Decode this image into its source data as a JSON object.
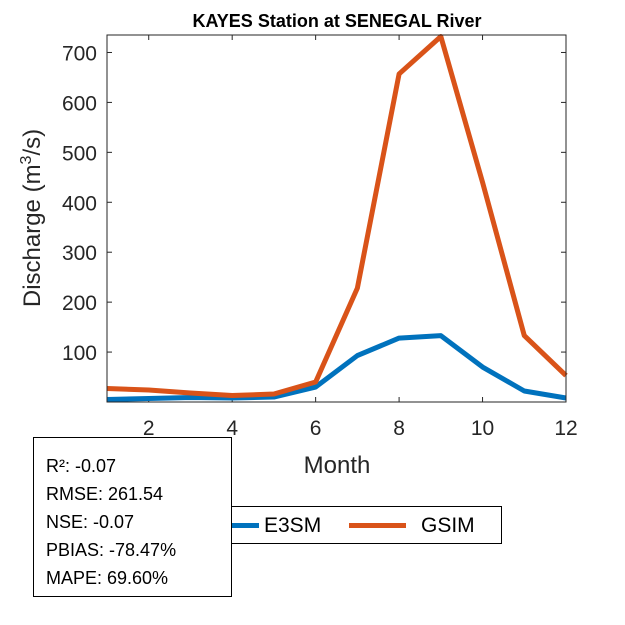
{
  "chart_data": {
    "type": "line",
    "title": "KAYES  Station at  SENEGAL  River",
    "xlabel": "Month",
    "ylabel_main": "Discharge (m",
    "ylabel_sup": "3",
    "ylabel_end": "/s)",
    "xlim": [
      1,
      12
    ],
    "ylim": [
      0,
      735
    ],
    "xticks": [
      2,
      4,
      6,
      8,
      10,
      12
    ],
    "yticks": [
      100,
      200,
      300,
      400,
      500,
      600,
      700
    ],
    "x": [
      1,
      2,
      3,
      4,
      5,
      6,
      7,
      8,
      9,
      10,
      11,
      12
    ],
    "series": [
      {
        "name": "E3SM",
        "color": "#0072BD",
        "values": [
          5,
          7,
          9,
          8,
          10,
          30,
          93,
          128,
          133,
          70,
          22,
          8
        ]
      },
      {
        "name": "GSIM",
        "color": "#D95319",
        "values": [
          27,
          24,
          18,
          13,
          16,
          40,
          228,
          657,
          732,
          440,
          133,
          53
        ]
      }
    ]
  },
  "stats": [
    "R²: -0.07",
    "RMSE: 261.54",
    "NSE: -0.07",
    "PBIAS: -78.47%",
    "MAPE: 69.60%"
  ],
  "legend": {
    "e3sm_label": "E3SM",
    "e3sm_color": "#0072BD",
    "gsim_label": "GSIM",
    "gsim_color": "#D95319"
  }
}
